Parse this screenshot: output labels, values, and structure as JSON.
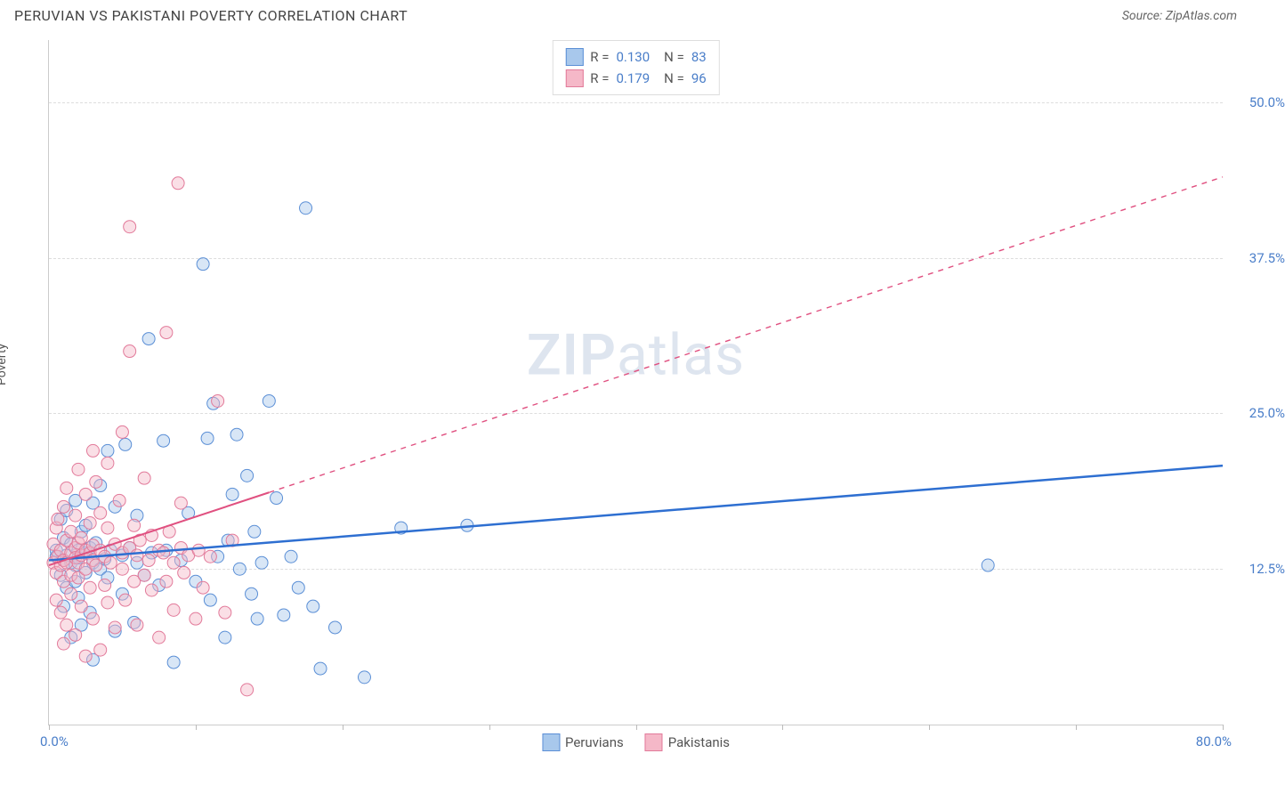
{
  "header": {
    "title": "PERUVIAN VS PAKISTANI POVERTY CORRELATION CHART",
    "source": "Source: ZipAtlas.com"
  },
  "watermark": {
    "zip": "ZIP",
    "atlas": "atlas"
  },
  "chart": {
    "type": "scatter",
    "ylabel": "Poverty",
    "xlim": [
      0,
      80
    ],
    "ylim": [
      0,
      55
    ],
    "x_min_label": "0.0%",
    "x_max_label": "80.0%",
    "y_ticks": [
      12.5,
      25.0,
      37.5,
      50.0
    ],
    "y_tick_labels": [
      "12.5%",
      "25.0%",
      "37.5%",
      "50.0%"
    ],
    "x_tick_positions": [
      0,
      10,
      20,
      30,
      40,
      50,
      60,
      70,
      80
    ],
    "grid_color": "#dddddd",
    "axis_color": "#cccccc",
    "background_color": "#ffffff",
    "marker_radius": 7,
    "marker_opacity": 0.45,
    "series": [
      {
        "name": "Peruvians",
        "color_fill": "#a8c8ec",
        "color_stroke": "#5b8fd6",
        "R": "0.130",
        "N": "83",
        "trend": {
          "x1": 0,
          "y1": 13.2,
          "x2": 80,
          "y2": 20.8,
          "solid_until_x": 80,
          "stroke": "#2e6fd1",
          "width": 2.5
        },
        "points": [
          [
            0.5,
            13.5
          ],
          [
            0.5,
            14.0
          ],
          [
            0.8,
            12.0
          ],
          [
            0.8,
            16.5
          ],
          [
            1.0,
            13.2
          ],
          [
            1.0,
            15.0
          ],
          [
            1.0,
            9.5
          ],
          [
            1.2,
            11.0
          ],
          [
            1.2,
            17.2
          ],
          [
            1.2,
            13.6
          ],
          [
            1.5,
            13.0
          ],
          [
            1.5,
            14.5
          ],
          [
            1.5,
            7.0
          ],
          [
            1.8,
            12.8
          ],
          [
            1.8,
            11.5
          ],
          [
            1.8,
            18.0
          ],
          [
            2.0,
            14.0
          ],
          [
            2.0,
            13.4
          ],
          [
            2.0,
            10.2
          ],
          [
            2.2,
            15.5
          ],
          [
            2.2,
            8.0
          ],
          [
            2.5,
            13.8
          ],
          [
            2.5,
            12.2
          ],
          [
            2.5,
            16.0
          ],
          [
            2.8,
            14.2
          ],
          [
            2.8,
            9.0
          ],
          [
            3.0,
            13.0
          ],
          [
            3.0,
            17.8
          ],
          [
            3.0,
            5.2
          ],
          [
            3.2,
            14.6
          ],
          [
            3.5,
            12.5
          ],
          [
            3.5,
            19.2
          ],
          [
            3.8,
            13.3
          ],
          [
            4.0,
            11.8
          ],
          [
            4.0,
            22.0
          ],
          [
            4.2,
            14.0
          ],
          [
            4.5,
            7.5
          ],
          [
            4.5,
            17.5
          ],
          [
            5.0,
            13.6
          ],
          [
            5.0,
            10.5
          ],
          [
            5.2,
            22.5
          ],
          [
            5.5,
            14.2
          ],
          [
            5.8,
            8.2
          ],
          [
            6.0,
            13.0
          ],
          [
            6.0,
            16.8
          ],
          [
            6.5,
            12.0
          ],
          [
            6.8,
            31.0
          ],
          [
            7.0,
            13.8
          ],
          [
            7.5,
            11.2
          ],
          [
            7.8,
            22.8
          ],
          [
            8.0,
            14.0
          ],
          [
            8.5,
            5.0
          ],
          [
            9.0,
            13.2
          ],
          [
            9.5,
            17.0
          ],
          [
            10.0,
            11.5
          ],
          [
            10.5,
            37.0
          ],
          [
            10.8,
            23.0
          ],
          [
            11.0,
            10.0
          ],
          [
            11.2,
            25.8
          ],
          [
            11.5,
            13.5
          ],
          [
            12.0,
            7.0
          ],
          [
            12.2,
            14.8
          ],
          [
            12.5,
            18.5
          ],
          [
            12.8,
            23.3
          ],
          [
            13.0,
            12.5
          ],
          [
            13.5,
            20.0
          ],
          [
            13.8,
            10.5
          ],
          [
            14.0,
            15.5
          ],
          [
            14.2,
            8.5
          ],
          [
            14.5,
            13.0
          ],
          [
            15.5,
            18.2
          ],
          [
            16.0,
            8.8
          ],
          [
            16.5,
            13.5
          ],
          [
            17.0,
            11.0
          ],
          [
            17.5,
            41.5
          ],
          [
            18.0,
            9.5
          ],
          [
            18.5,
            4.5
          ],
          [
            19.5,
            7.8
          ],
          [
            21.5,
            3.8
          ],
          [
            24.0,
            15.8
          ],
          [
            28.5,
            16.0
          ],
          [
            64.0,
            12.8
          ],
          [
            15.0,
            26.0
          ]
        ]
      },
      {
        "name": "Pakistanis",
        "color_fill": "#f5b8c8",
        "color_stroke": "#e27a9a",
        "R": "0.179",
        "N": "96",
        "trend": {
          "x1": 0,
          "y1": 12.8,
          "x2": 80,
          "y2": 44.0,
          "solid_until_x": 15,
          "stroke": "#e05080",
          "width": 2
        },
        "points": [
          [
            0.3,
            13.0
          ],
          [
            0.3,
            14.5
          ],
          [
            0.5,
            12.2
          ],
          [
            0.5,
            15.8
          ],
          [
            0.5,
            10.0
          ],
          [
            0.6,
            13.5
          ],
          [
            0.6,
            16.5
          ],
          [
            0.8,
            12.8
          ],
          [
            0.8,
            14.0
          ],
          [
            0.8,
            9.0
          ],
          [
            1.0,
            13.2
          ],
          [
            1.0,
            17.5
          ],
          [
            1.0,
            11.5
          ],
          [
            1.0,
            6.5
          ],
          [
            1.2,
            14.8
          ],
          [
            1.2,
            13.0
          ],
          [
            1.2,
            19.0
          ],
          [
            1.2,
            8.0
          ],
          [
            1.5,
            13.8
          ],
          [
            1.5,
            12.0
          ],
          [
            1.5,
            15.5
          ],
          [
            1.5,
            10.5
          ],
          [
            1.8,
            14.2
          ],
          [
            1.8,
            13.4
          ],
          [
            1.8,
            16.8
          ],
          [
            1.8,
            7.2
          ],
          [
            2.0,
            13.0
          ],
          [
            2.0,
            14.6
          ],
          [
            2.0,
            11.8
          ],
          [
            2.0,
            20.5
          ],
          [
            2.2,
            13.6
          ],
          [
            2.2,
            9.5
          ],
          [
            2.2,
            15.0
          ],
          [
            2.5,
            12.5
          ],
          [
            2.5,
            14.0
          ],
          [
            2.5,
            5.5
          ],
          [
            2.5,
            18.5
          ],
          [
            2.8,
            13.8
          ],
          [
            2.8,
            11.0
          ],
          [
            2.8,
            16.2
          ],
          [
            3.0,
            14.4
          ],
          [
            3.0,
            8.5
          ],
          [
            3.0,
            22.0
          ],
          [
            3.0,
            13.2
          ],
          [
            3.2,
            19.5
          ],
          [
            3.2,
            12.8
          ],
          [
            3.5,
            14.0
          ],
          [
            3.5,
            6.0
          ],
          [
            3.5,
            17.0
          ],
          [
            3.8,
            13.5
          ],
          [
            3.8,
            11.2
          ],
          [
            4.0,
            15.8
          ],
          [
            4.0,
            9.8
          ],
          [
            4.0,
            21.0
          ],
          [
            4.2,
            13.0
          ],
          [
            4.5,
            14.5
          ],
          [
            4.5,
            7.8
          ],
          [
            4.8,
            18.0
          ],
          [
            5.0,
            12.5
          ],
          [
            5.0,
            13.8
          ],
          [
            5.0,
            23.5
          ],
          [
            5.2,
            10.0
          ],
          [
            5.5,
            14.2
          ],
          [
            5.5,
            30.0
          ],
          [
            5.8,
            11.5
          ],
          [
            5.8,
            16.0
          ],
          [
            6.0,
            13.6
          ],
          [
            6.0,
            8.0
          ],
          [
            6.2,
            14.8
          ],
          [
            6.5,
            12.0
          ],
          [
            6.5,
            19.8
          ],
          [
            6.8,
            13.2
          ],
          [
            7.0,
            10.8
          ],
          [
            7.0,
            15.2
          ],
          [
            5.5,
            40.0
          ],
          [
            7.5,
            14.0
          ],
          [
            7.5,
            7.0
          ],
          [
            7.8,
            13.8
          ],
          [
            8.0,
            31.5
          ],
          [
            8.0,
            11.5
          ],
          [
            8.2,
            15.5
          ],
          [
            8.5,
            13.0
          ],
          [
            8.5,
            9.2
          ],
          [
            8.8,
            43.5
          ],
          [
            9.0,
            14.2
          ],
          [
            9.0,
            17.8
          ],
          [
            9.2,
            12.2
          ],
          [
            9.5,
            13.6
          ],
          [
            10.0,
            8.5
          ],
          [
            10.2,
            14.0
          ],
          [
            10.5,
            11.0
          ],
          [
            11.0,
            13.5
          ],
          [
            11.5,
            26.0
          ],
          [
            12.0,
            9.0
          ],
          [
            12.5,
            14.8
          ],
          [
            13.5,
            2.8
          ]
        ]
      }
    ],
    "legend_bottom": [
      {
        "label": "Peruvians",
        "fill": "#a8c8ec",
        "stroke": "#5b8fd6"
      },
      {
        "label": "Pakistanis",
        "fill": "#f5b8c8",
        "stroke": "#e27a9a"
      }
    ]
  }
}
